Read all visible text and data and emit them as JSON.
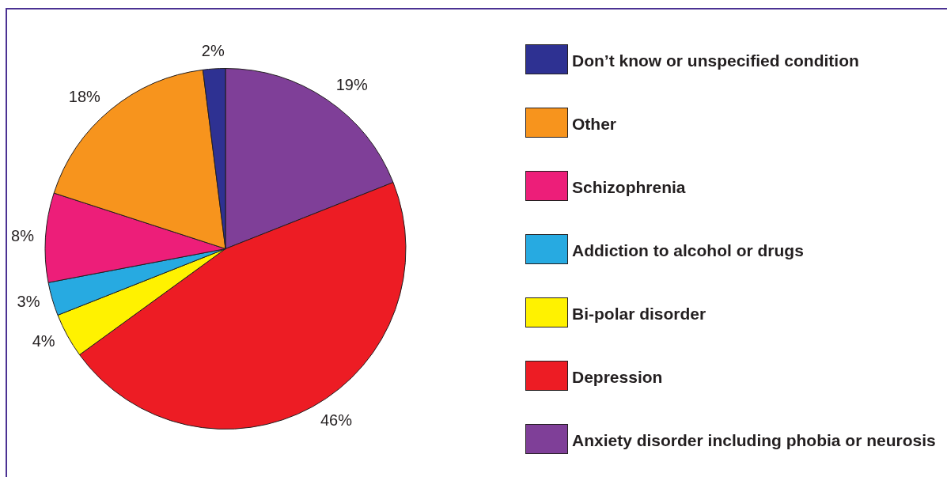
{
  "chart_data": {
    "type": "pie",
    "categories": [
      "Anxiety disorder including phobia or neurosis",
      "Depression",
      "Bi-polar disorder",
      "Addiction to alcohol or drugs",
      "Schizophrenia",
      "Other",
      "Don’t know or unspecified condition"
    ],
    "values": [
      19,
      46,
      4,
      3,
      8,
      18,
      2
    ],
    "colors": [
      "#7f3f98",
      "#ed1c24",
      "#fff200",
      "#27aae1",
      "#ed1e79",
      "#f7941d",
      "#2e3192"
    ],
    "value_labels": [
      "19%",
      "46%",
      "4%",
      "3%",
      "8%",
      "18%",
      "2%"
    ],
    "legend": "right"
  }
}
